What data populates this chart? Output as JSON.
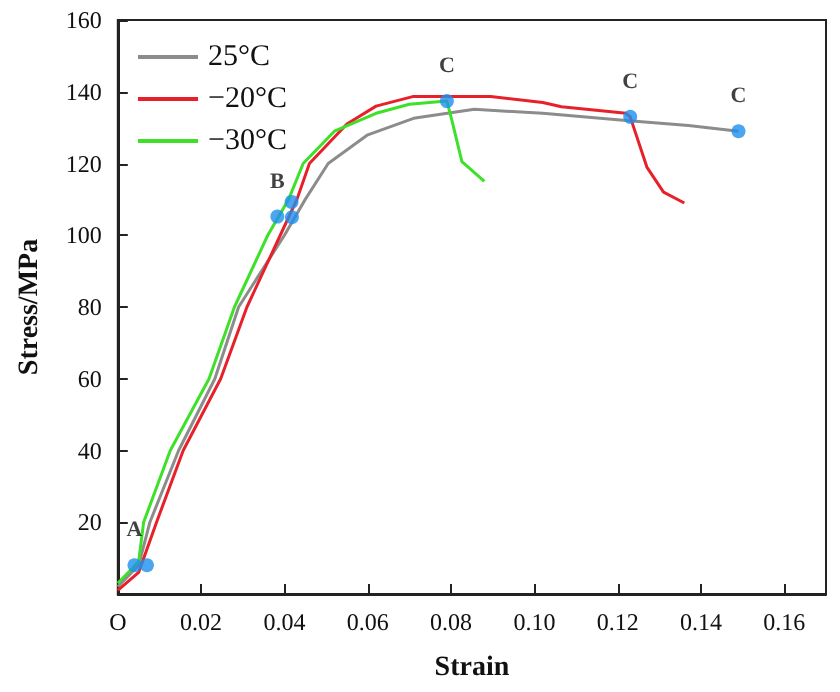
{
  "chart_data": {
    "type": "line",
    "xlabel": "Strain",
    "ylabel": "Stress/MPa",
    "xlim": [
      0,
      0.17
    ],
    "ylim": [
      0,
      160
    ],
    "xticks": [
      {
        "value": 0,
        "label": "O"
      },
      {
        "value": 0.02,
        "label": "0.02"
      },
      {
        "value": 0.04,
        "label": "0.04"
      },
      {
        "value": 0.06,
        "label": "0.06"
      },
      {
        "value": 0.08,
        "label": "0.08"
      },
      {
        "value": 0.1,
        "label": "0.10"
      },
      {
        "value": 0.12,
        "label": "0.12"
      },
      {
        "value": 0.14,
        "label": "0.14"
      },
      {
        "value": 0.16,
        "label": "0.16"
      }
    ],
    "yticks": [
      {
        "value": 0,
        "label": null
      },
      20,
      40,
      60,
      80,
      100,
      120,
      140,
      160
    ],
    "grid": false,
    "legend": "top left",
    "marker": "none",
    "line_style": "solid",
    "series": [
      {
        "name": "25°C",
        "color": "#8c8c8c",
        "x": [
          0,
          0.005,
          0.0077,
          0.0146,
          0.0233,
          0.029,
          0.04,
          0.045,
          0.0505,
          0.06,
          0.071,
          0.0856,
          0.102,
          0.122,
          0.137,
          0.149
        ],
        "values": [
          2,
          8,
          20,
          40,
          60,
          80,
          100,
          110,
          120,
          128,
          132.6,
          135.1,
          134,
          132,
          130.6,
          129
        ]
      },
      {
        "name": "−20°C",
        "color": "#e8202a",
        "x": [
          0,
          0.005,
          0.0093,
          0.0157,
          0.0247,
          0.031,
          0.039,
          0.043,
          0.046,
          0.055,
          0.062,
          0.071,
          0.0895,
          0.102,
          0.1065,
          0.122,
          0.123,
          0.127,
          0.131,
          0.136
        ],
        "values": [
          1,
          6,
          20,
          40,
          60,
          80,
          100,
          110,
          120,
          131,
          136,
          138.7,
          138.7,
          137,
          135.8,
          134,
          133,
          119,
          112,
          109
        ]
      },
      {
        "name": "−30°C",
        "color": "#3ee02a",
        "x": [
          0,
          0.005,
          0.0062,
          0.0126,
          0.0219,
          0.028,
          0.036,
          0.041,
          0.0445,
          0.052,
          0.062,
          0.07,
          0.079,
          0.0802,
          0.0826,
          0.088
        ],
        "values": [
          3,
          9,
          20,
          40,
          60,
          80,
          100,
          110,
          120,
          129,
          134,
          136.5,
          137.4,
          132,
          120.5,
          115
        ]
      },
      {
        "type": "scatter",
        "marker": "circle",
        "color": "#1e90ee",
        "x": [
          0.004,
          0.007,
          0.0383,
          0.0417,
          0.0418,
          0.079,
          0.123,
          0.149
        ],
        "values": [
          8,
          8,
          105.2,
          109.3,
          105,
          137.4,
          133,
          129
        ]
      }
    ],
    "annotations": [
      {
        "text": "A",
        "x": 0.004,
        "y": 8
      },
      {
        "text": "B",
        "x": 0.0383,
        "y": 105.2
      },
      {
        "text": "C",
        "x": 0.079,
        "y": 137.4
      },
      {
        "text": "C",
        "x": 0.123,
        "y": 133
      },
      {
        "text": "C",
        "x": 0.149,
        "y": 129
      }
    ]
  }
}
